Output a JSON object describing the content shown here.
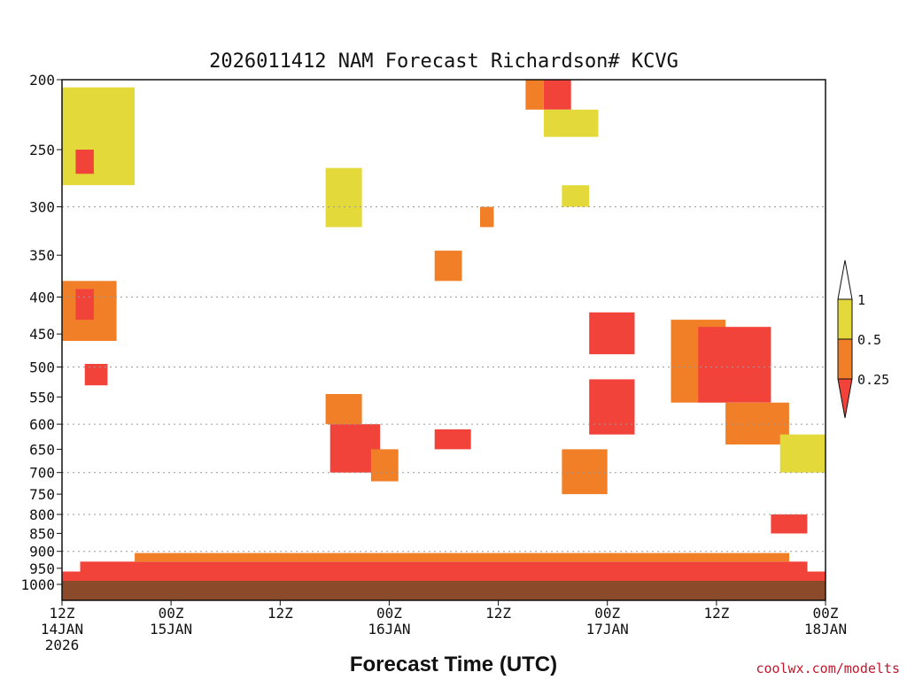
{
  "chart_data": {
    "type": "heatmap",
    "title": "2026011412 NAM Forecast Richardson# KCVG",
    "xlabel": "Forecast Time (UTC)",
    "ylabel": "",
    "y_scale": "pressure (hPa, log, inverted)",
    "ylim": [
      1000,
      200
    ],
    "y_ticks": [
      "200",
      "250",
      "300",
      "350",
      "400",
      "450",
      "500",
      "550",
      "600",
      "650",
      "700",
      "750",
      "800",
      "850",
      "900",
      "950",
      "1000"
    ],
    "y_gridlines": [
      300,
      400,
      500,
      600,
      700,
      800,
      900,
      1000
    ],
    "xlim": [
      "2026-01-14 12Z",
      "2026-01-18 00Z"
    ],
    "x_tick_hours": [
      0,
      12,
      24,
      36,
      48,
      60,
      72,
      84
    ],
    "x_ticks": [
      {
        "line1": "12Z",
        "line2": "14JAN",
        "line3": "2026"
      },
      {
        "line1": "00Z",
        "line2": "15JAN",
        "line3": ""
      },
      {
        "line1": "12Z",
        "line2": "",
        "line3": ""
      },
      {
        "line1": "00Z",
        "line2": "16JAN",
        "line3": ""
      },
      {
        "line1": "12Z",
        "line2": "",
        "line3": ""
      },
      {
        "line1": "00Z",
        "line2": "17JAN",
        "line3": ""
      },
      {
        "line1": "12Z",
        "line2": "",
        "line3": ""
      },
      {
        "line1": "00Z",
        "line2": "18JAN",
        "line3": ""
      }
    ],
    "colorbar": {
      "levels": [
        "1",
        "0.5",
        "0.25"
      ],
      "colors": {
        "above_1": "#ffffff",
        "0.5_to_1": "#e3d93a",
        "0.25_to_0.5": "#f07f28",
        "below_0.25": "#f2433a"
      }
    },
    "surface_color": "#8b4a2a",
    "regions": [
      {
        "class": "lt_0.25",
        "hours": [
          0,
          84
        ],
        "p": [
          960,
          990
        ]
      },
      {
        "class": "lt_0.25",
        "hours": [
          2,
          82
        ],
        "p": [
          930,
          960
        ]
      },
      {
        "class": "0.25_0.5",
        "hours": [
          8,
          80
        ],
        "p": [
          905,
          930
        ]
      },
      {
        "class": "0.25_0.5",
        "hours": [
          0,
          6
        ],
        "p": [
          380,
          460
        ]
      },
      {
        "class": "lt_0.25",
        "hours": [
          1.5,
          3.5
        ],
        "p": [
          390,
          430
        ]
      },
      {
        "class": "lt_0.25",
        "hours": [
          2.5,
          5
        ],
        "p": [
          495,
          530
        ]
      },
      {
        "class": "0.5_1",
        "hours": [
          0,
          8
        ],
        "p": [
          205,
          280
        ]
      },
      {
        "class": "lt_0.25",
        "hours": [
          1.5,
          3.5
        ],
        "p": [
          250,
          270
        ]
      },
      {
        "class": "0.5_1",
        "hours": [
          29,
          33
        ],
        "p": [
          265,
          320
        ]
      },
      {
        "class": "0.25_0.5",
        "hours": [
          29,
          33
        ],
        "p": [
          545,
          600
        ]
      },
      {
        "class": "lt_0.25",
        "hours": [
          29.5,
          35
        ],
        "p": [
          600,
          700
        ]
      },
      {
        "class": "0.25_0.5",
        "hours": [
          34,
          37
        ],
        "p": [
          650,
          720
        ]
      },
      {
        "class": "lt_0.25",
        "hours": [
          41,
          45
        ],
        "p": [
          610,
          650
        ]
      },
      {
        "class": "0.25_0.5",
        "hours": [
          41,
          44
        ],
        "p": [
          345,
          380
        ]
      },
      {
        "class": "lt_0.25",
        "hours": [
          58,
          63
        ],
        "p": [
          420,
          480
        ]
      },
      {
        "class": "0.25_0.5",
        "hours": [
          55,
          60
        ],
        "p": [
          650,
          750
        ]
      },
      {
        "class": "lt_0.25",
        "hours": [
          58,
          63
        ],
        "p": [
          520,
          620
        ]
      },
      {
        "class": "0.25_0.5",
        "hours": [
          67,
          73
        ],
        "p": [
          430,
          560
        ]
      },
      {
        "class": "lt_0.25",
        "hours": [
          70,
          78
        ],
        "p": [
          440,
          560
        ]
      },
      {
        "class": "0.25_0.5",
        "hours": [
          73,
          80
        ],
        "p": [
          560,
          640
        ]
      },
      {
        "class": "0.5_1",
        "hours": [
          79,
          84
        ],
        "p": [
          620,
          700
        ]
      },
      {
        "class": "lt_0.25",
        "hours": [
          78,
          82
        ],
        "p": [
          800,
          850
        ]
      },
      {
        "class": "lt_0.25",
        "hours": [
          53,
          56
        ],
        "p": [
          200,
          220
        ]
      },
      {
        "class": "0.25_0.5",
        "hours": [
          51,
          53
        ],
        "p": [
          200,
          220
        ]
      },
      {
        "class": "0.5_1",
        "hours": [
          53,
          59
        ],
        "p": [
          220,
          240
        ]
      },
      {
        "class": "0.5_1",
        "hours": [
          55,
          58
        ],
        "p": [
          280,
          300
        ]
      },
      {
        "class": "0.25_0.5",
        "hours": [
          46,
          47.5
        ],
        "p": [
          300,
          320
        ]
      }
    ]
  },
  "footer": {
    "credit": "coolwx.com/modelts"
  }
}
